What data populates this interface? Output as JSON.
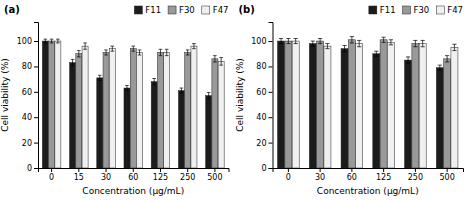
{
  "chart_data": [
    {
      "type": "bar",
      "title": "(a)",
      "categories": [
        "0",
        "15",
        "30",
        "60",
        "125",
        "250",
        "500"
      ],
      "series": [
        {
          "name": "F11",
          "color": "#1c1c1c",
          "values": [
            100,
            83,
            71,
            63,
            68,
            61,
            57
          ],
          "errors": [
            1.5,
            2.5,
            2.0,
            2.0,
            2.5,
            2.0,
            2.5
          ]
        },
        {
          "name": "F30",
          "color": "#999999",
          "values": [
            100,
            90,
            91,
            94,
            91,
            91,
            86
          ],
          "errors": [
            1.5,
            2.5,
            2.0,
            2.0,
            2.5,
            2.0,
            2.5
          ]
        },
        {
          "name": "F47",
          "color": "#f0f0f0",
          "values": [
            100,
            96,
            94,
            91,
            91,
            96,
            84
          ],
          "errors": [
            1.5,
            2.5,
            2.0,
            2.0,
            2.5,
            2.0,
            3.0
          ]
        }
      ],
      "x_label": "Concentration (μg/mL)",
      "y_label": "Cell viability (%)",
      "ylim": [
        0,
        115
      ],
      "yticks": [
        0,
        20,
        40,
        60,
        80,
        100
      ],
      "legend": "upper right"
    },
    {
      "type": "bar",
      "title": "(b)",
      "categories": [
        "0",
        "30",
        "60",
        "125",
        "250",
        "500"
      ],
      "series": [
        {
          "name": "F11",
          "color": "#1c1c1c",
          "values": [
            100,
            98,
            94,
            90,
            85,
            79
          ],
          "errors": [
            2.0,
            2.0,
            2.5,
            2.0,
            2.5,
            2.0
          ]
        },
        {
          "name": "F30",
          "color": "#999999",
          "values": [
            100,
            100,
            101,
            101,
            98,
            86
          ],
          "errors": [
            2.0,
            2.0,
            2.5,
            2.0,
            2.5,
            2.5
          ]
        },
        {
          "name": "F47",
          "color": "#f0f0f0",
          "values": [
            100,
            96,
            98,
            99,
            98,
            95
          ],
          "errors": [
            2.0,
            2.0,
            2.5,
            2.0,
            2.5,
            2.5
          ]
        }
      ],
      "x_label": "Concentration (μg/mL)",
      "y_label": "Cell viability (%)",
      "ylim": [
        0,
        115
      ],
      "yticks": [
        0,
        20,
        40,
        60,
        80,
        100
      ],
      "legend": "upper right"
    }
  ]
}
